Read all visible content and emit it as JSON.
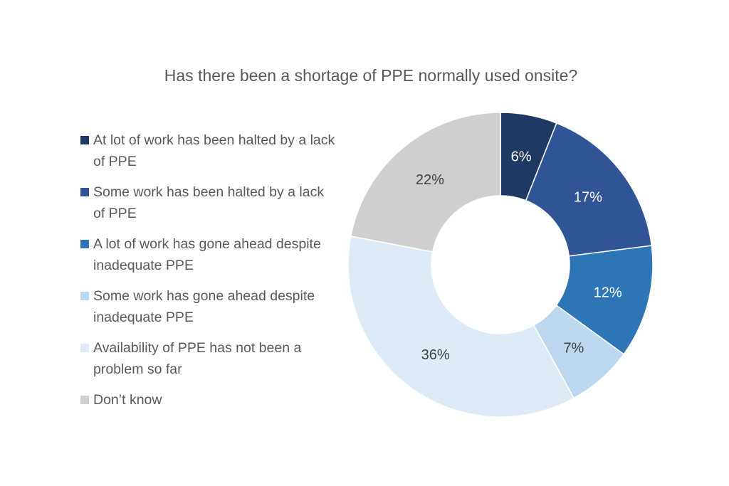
{
  "chart_data": {
    "type": "pie",
    "variant": "donut",
    "title": "Has there been a shortage of PPE normally used onsite?",
    "legend_position": "left",
    "categories": [
      "At lot of work has been halted by a lack of PPE",
      "Some work has been halted by a lack of PPE",
      "A lot of work has gone ahead despite inadequate PPE",
      "Some work has gone ahead despite inadequate PPE",
      "Availability of PPE has not been a problem so far",
      "Don’t know"
    ],
    "values": [
      6,
      17,
      12,
      7,
      36,
      22
    ],
    "data_labels": [
      "6%",
      "17%",
      "12%",
      "7%",
      "36%",
      "22%"
    ],
    "colors": [
      "#1F3864",
      "#2F5597",
      "#2E75B6",
      "#BDD7EE",
      "#DEEBF7",
      "#D0CECE"
    ],
    "label_colors": [
      "#FFFFFF",
      "#FFFFFF",
      "#FFFFFF",
      "#404040",
      "#404040",
      "#404040"
    ]
  }
}
